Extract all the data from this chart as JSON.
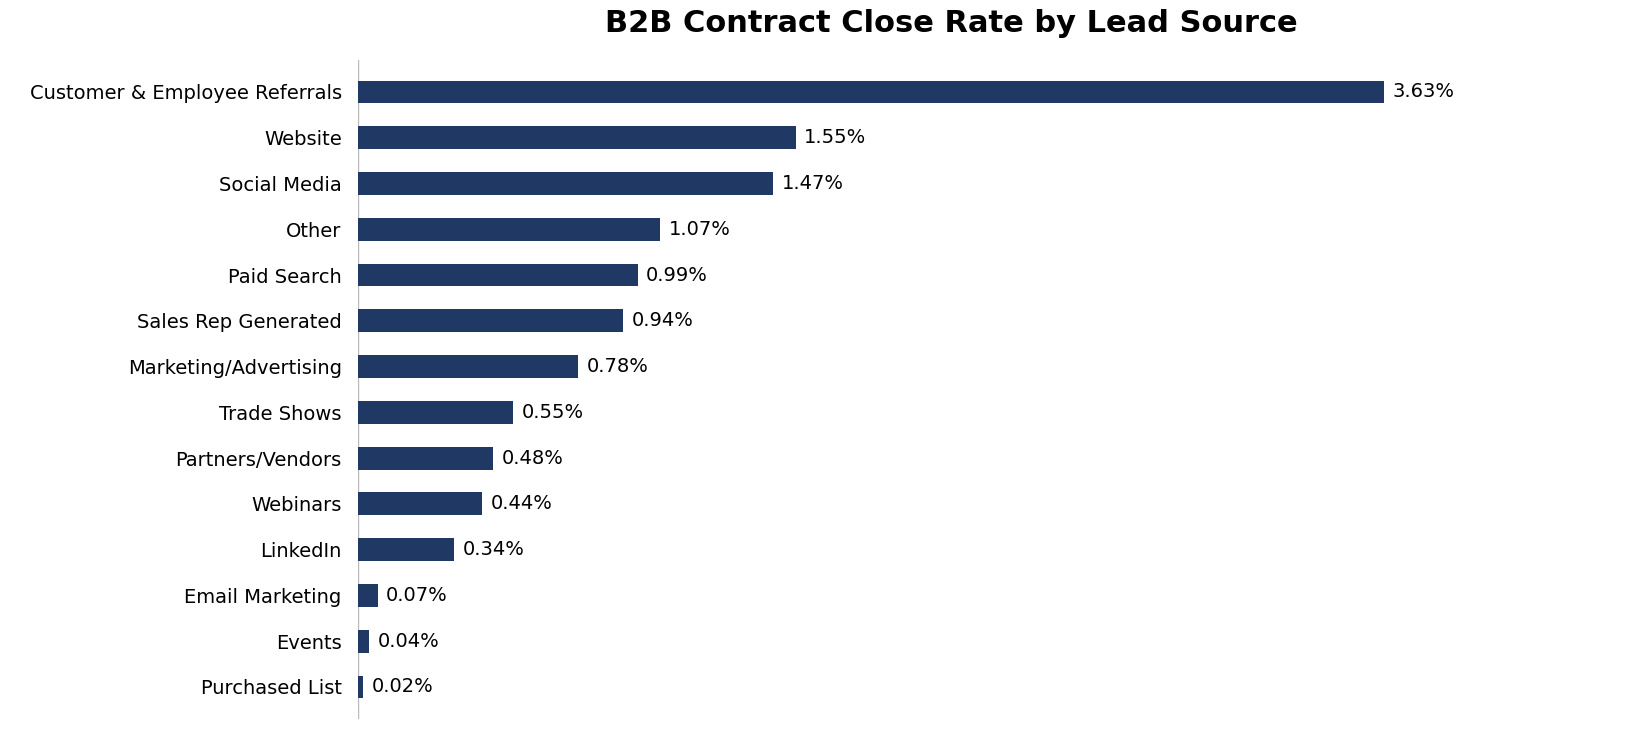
{
  "title": "B2B Contract Close Rate by Lead Source",
  "categories": [
    "Purchased List",
    "Events",
    "Email Marketing",
    "LinkedIn",
    "Webinars",
    "Partners/Vendors",
    "Trade Shows",
    "Marketing/Advertising",
    "Sales Rep Generated",
    "Paid Search",
    "Other",
    "Social Media",
    "Website",
    "Customer & Employee Referrals"
  ],
  "values": [
    0.02,
    0.04,
    0.07,
    0.34,
    0.44,
    0.48,
    0.55,
    0.78,
    0.94,
    0.99,
    1.07,
    1.47,
    1.55,
    3.63
  ],
  "bar_color": "#1F3864",
  "background_color": "#ffffff",
  "title_fontsize": 22,
  "label_fontsize": 14,
  "value_fontsize": 14,
  "xlim": [
    0,
    4.2
  ],
  "bar_height": 0.5
}
